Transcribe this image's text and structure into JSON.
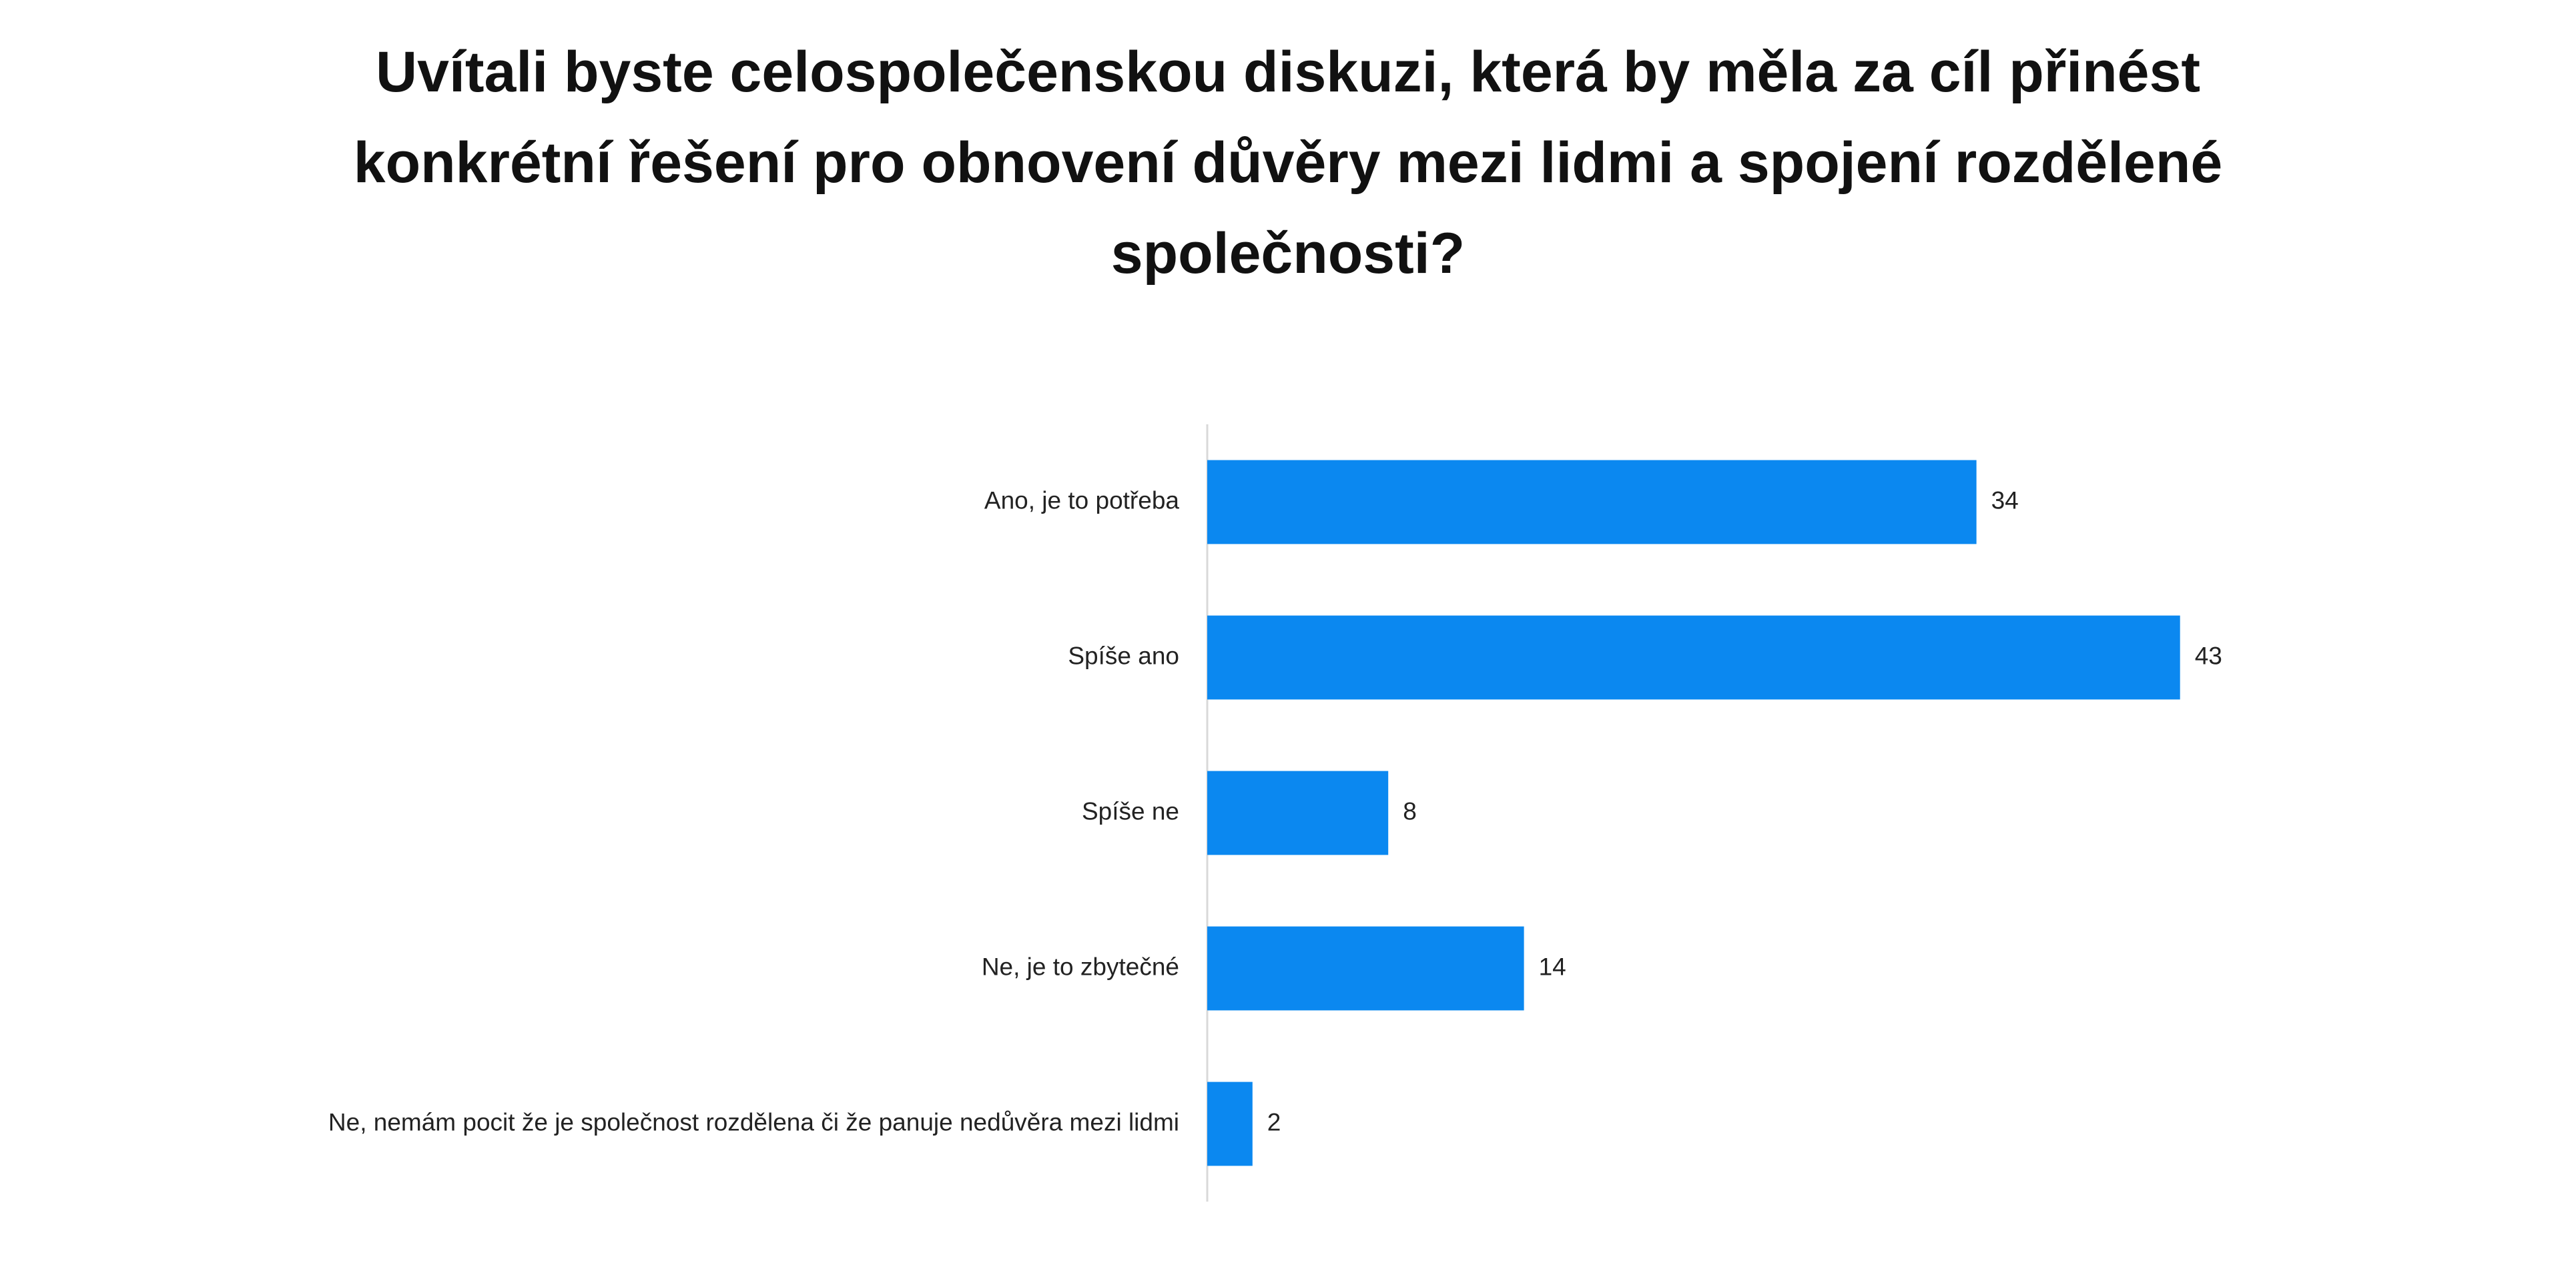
{
  "chart_data": {
    "type": "hbar",
    "title": "Uvítali byste celospolečenskou diskuzi, která by měla za cíl přinést konkrétní řešení pro obnovení důvěry mezi lidmi a spojení rozdělené společnosti?",
    "categories": [
      "Ano, je to potřeba",
      "Spíše ano",
      "Spíše ne",
      "Ne, je to zbytečné",
      "Ne, nemám pocit že je společnost rozdělena či že panuje nedůvěra mezi lidmi"
    ],
    "values": [
      34,
      43,
      8,
      14,
      2
    ],
    "color": "#0b88f0",
    "xlim": [
      0,
      50
    ]
  }
}
